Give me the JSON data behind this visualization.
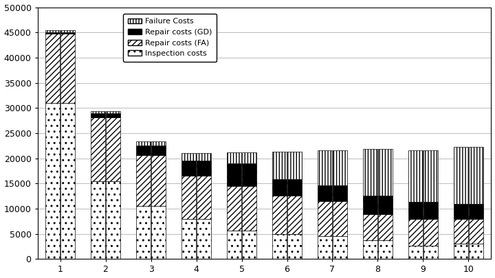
{
  "categories": [
    1,
    2,
    3,
    4,
    5,
    6,
    7,
    8,
    9,
    10
  ],
  "bar_width": 0.32,
  "left_bars": {
    "inspection": [
      31000,
      15500,
      10500,
      8000,
      5700,
      5000,
      4600,
      3700,
      2700,
      3100
    ],
    "repair_fa": [
      13800,
      12700,
      10200,
      8500,
      8800,
      7600,
      6900,
      5200,
      5300,
      4800
    ],
    "repair_gd": [
      200,
      800,
      1800,
      3000,
      4500,
      3200,
      3100,
      3700,
      3400,
      3100
    ],
    "failure": [
      400,
      400,
      800,
      1500,
      2200,
      5500,
      7000,
      9200,
      10200,
      11300
    ]
  },
  "right_bars": {
    "inspection": [
      31000,
      15500,
      10500,
      8000,
      5700,
      5000,
      4600,
      3700,
      2700,
      3100
    ],
    "repair_fa": [
      13800,
      12700,
      10200,
      8500,
      8800,
      7600,
      6900,
      5200,
      5300,
      4800
    ],
    "repair_gd": [
      200,
      800,
      1800,
      3000,
      4500,
      3200,
      3100,
      3700,
      3400,
      3100
    ],
    "failure": [
      400,
      400,
      800,
      1500,
      2200,
      5500,
      7000,
      9200,
      10200,
      11300
    ]
  },
  "ylim": [
    0,
    50000
  ],
  "yticks": [
    0,
    5000,
    10000,
    15000,
    20000,
    25000,
    30000,
    35000,
    40000,
    45000,
    50000
  ],
  "background_color": "#ffffff",
  "grid_color": "#bbbbbb",
  "legend_labels": [
    "Failure Costs",
    "Repair costs (GD)",
    "Repair costs (FA)",
    "Inspection costs"
  ]
}
